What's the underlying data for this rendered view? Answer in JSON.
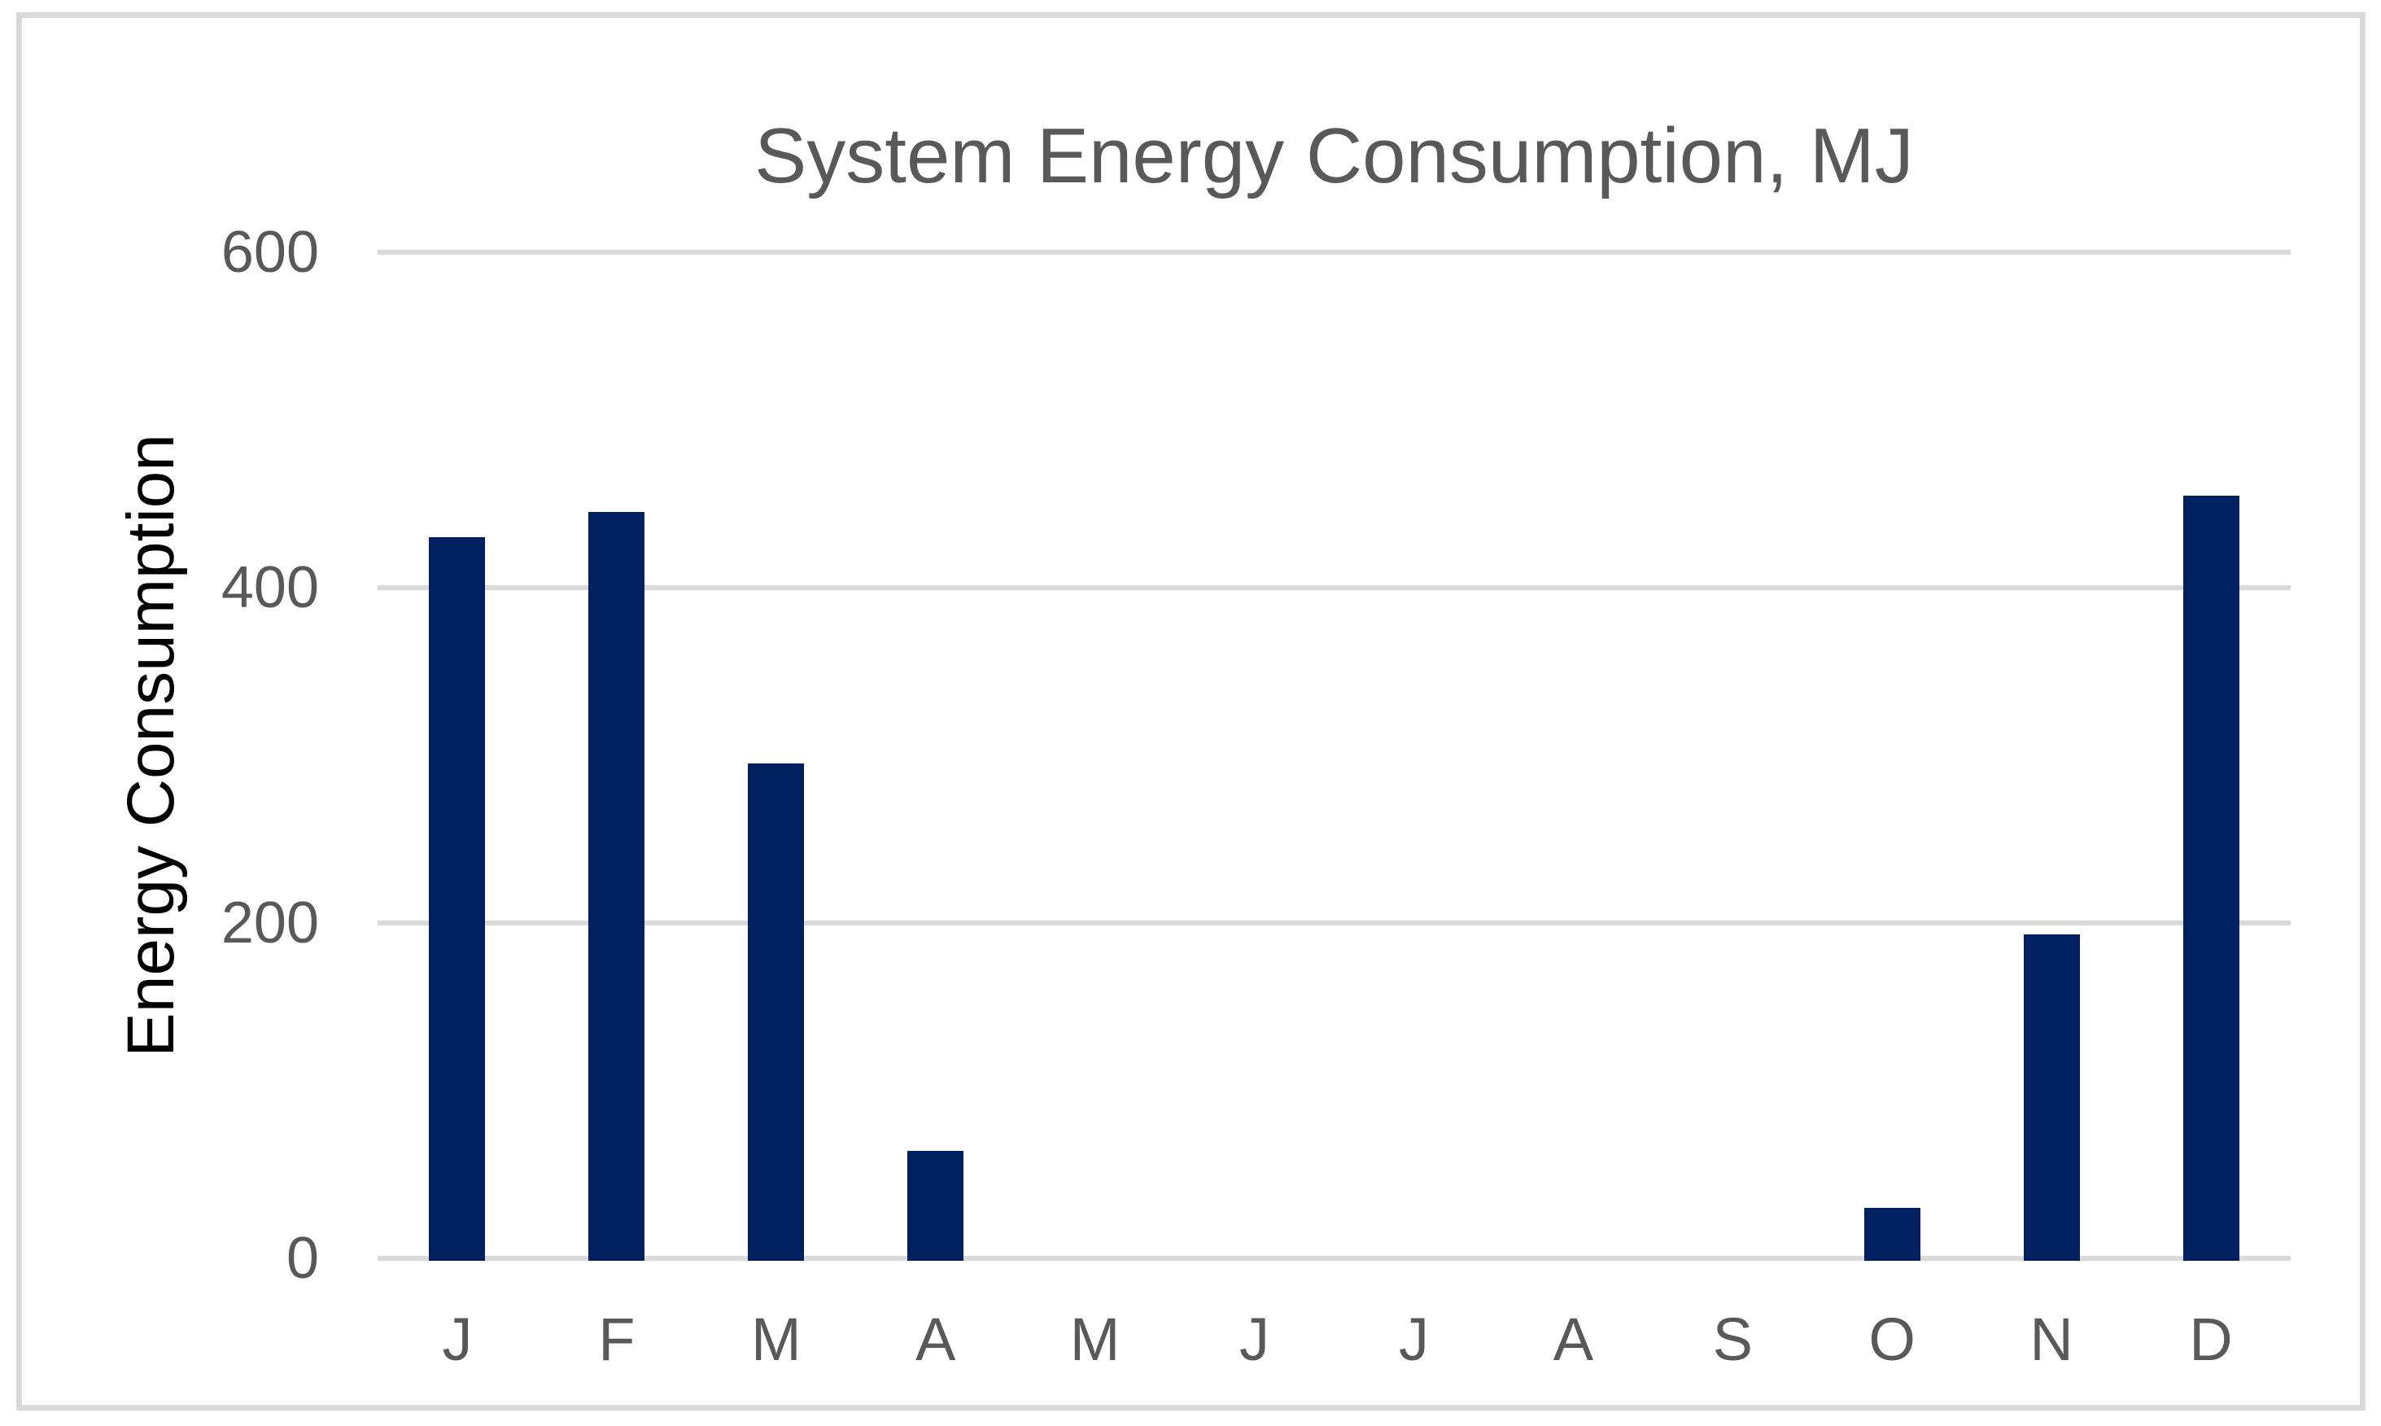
{
  "chart_data": {
    "type": "bar",
    "title": "System Energy Consumption, MJ",
    "xlabel": "",
    "ylabel": "Energy Consumption",
    "categories": [
      "J",
      "F",
      "M",
      "A",
      "M",
      "J",
      "J",
      "A",
      "S",
      "O",
      "N",
      "D"
    ],
    "values": [
      430,
      445,
      295,
      64,
      0,
      0,
      0,
      0,
      0,
      30,
      193,
      455
    ],
    "series_name": "Energy Consumption",
    "yticks": [
      0,
      200,
      400,
      600
    ],
    "ylim": [
      0,
      600
    ],
    "grid": "on",
    "legend": "none",
    "colors": {
      "bar": "#002060",
      "gridline": "#d9d9d9",
      "tick_labels": "#595959",
      "title": "#595959",
      "axis_title": "#000000",
      "border": "#d9d9d9",
      "background": "#ffffff"
    }
  }
}
